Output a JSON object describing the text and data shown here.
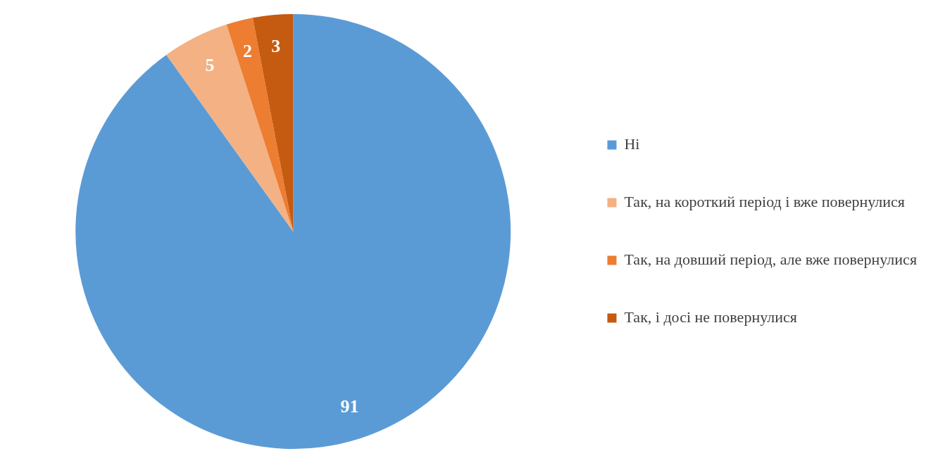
{
  "chart_data": {
    "type": "pie",
    "categories": [
      "Ні",
      "Так, на короткий період і вже повернулися",
      "Так, на довший період, але вже повернулися",
      "Так, і досі не повернулися"
    ],
    "values": [
      91,
      5,
      2,
      3
    ],
    "colors": [
      "#5b9bd5",
      "#f4b183",
      "#ed7d31",
      "#c55a11"
    ],
    "data_labels": true,
    "legend": "right"
  }
}
